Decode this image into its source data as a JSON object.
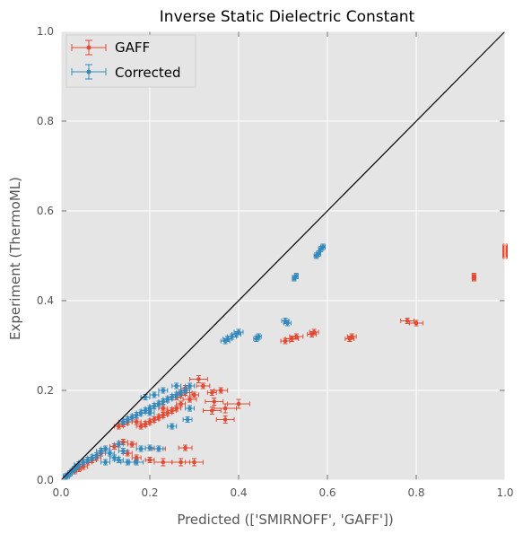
{
  "chart_data": {
    "type": "scatter",
    "title": "Inverse Static Dielectric Constant",
    "xlabel": "Predicted (['SMIRNOFF', 'GAFF'])",
    "ylabel": "Experiment (ThermoML)",
    "xlim": [
      0.0,
      1.0
    ],
    "ylim": [
      0.0,
      1.0
    ],
    "xticks": [
      "0.0",
      "0.2",
      "0.4",
      "0.6",
      "0.8",
      "1.0"
    ],
    "yticks": [
      "0.0",
      "0.2",
      "0.4",
      "0.6",
      "0.8",
      "1.0"
    ],
    "grid": true,
    "legend_position": "top-left",
    "diagonal": {
      "from": [
        0,
        0
      ],
      "to": [
        1,
        1
      ],
      "color": "#000000"
    },
    "series": [
      {
        "name": "GAFF",
        "color": "#E24A33",
        "points": [
          [
            1.0,
            0.52,
            0.005
          ],
          [
            1.0,
            0.51,
            0.005
          ],
          [
            1.0,
            0.5,
            0.005
          ],
          [
            0.93,
            0.455,
            0.004
          ],
          [
            0.93,
            0.45,
            0.004
          ],
          [
            0.78,
            0.355,
            0.015
          ],
          [
            0.8,
            0.35,
            0.015
          ],
          [
            0.655,
            0.32,
            0.01
          ],
          [
            0.65,
            0.315,
            0.01
          ],
          [
            0.57,
            0.33,
            0.01
          ],
          [
            0.565,
            0.325,
            0.01
          ],
          [
            0.53,
            0.32,
            0.015
          ],
          [
            0.52,
            0.315,
            0.015
          ],
          [
            0.505,
            0.31,
            0.01
          ],
          [
            0.37,
            0.135,
            0.02
          ],
          [
            0.37,
            0.16,
            0.025
          ],
          [
            0.4,
            0.17,
            0.025
          ],
          [
            0.34,
            0.155,
            0.02
          ],
          [
            0.345,
            0.175,
            0.02
          ],
          [
            0.34,
            0.195,
            0.01
          ],
          [
            0.36,
            0.2,
            0.015
          ],
          [
            0.32,
            0.21,
            0.015
          ],
          [
            0.31,
            0.225,
            0.02
          ],
          [
            0.29,
            0.18,
            0.015
          ],
          [
            0.28,
            0.195,
            0.015
          ],
          [
            0.27,
            0.17,
            0.01
          ],
          [
            0.26,
            0.16,
            0.01
          ],
          [
            0.25,
            0.155,
            0.01
          ],
          [
            0.24,
            0.15,
            0.01
          ],
          [
            0.23,
            0.145,
            0.01
          ],
          [
            0.22,
            0.14,
            0.01
          ],
          [
            0.21,
            0.135,
            0.01
          ],
          [
            0.2,
            0.13,
            0.01
          ],
          [
            0.19,
            0.125,
            0.01
          ],
          [
            0.18,
            0.12,
            0.01
          ],
          [
            0.17,
            0.13,
            0.01
          ],
          [
            0.16,
            0.14,
            0.01
          ],
          [
            0.15,
            0.13,
            0.01
          ],
          [
            0.14,
            0.125,
            0.01
          ],
          [
            0.13,
            0.12,
            0.01
          ],
          [
            0.22,
            0.17,
            0.01
          ],
          [
            0.24,
            0.18,
            0.01
          ],
          [
            0.26,
            0.185,
            0.01
          ],
          [
            0.28,
            0.205,
            0.01
          ],
          [
            0.3,
            0.19,
            0.01
          ],
          [
            0.23,
            0.16,
            0.01
          ],
          [
            0.27,
            0.19,
            0.01
          ],
          [
            0.28,
            0.072,
            0.015
          ],
          [
            0.22,
            0.07,
            0.015
          ],
          [
            0.3,
            0.04,
            0.02
          ],
          [
            0.27,
            0.04,
            0.02
          ],
          [
            0.23,
            0.04,
            0.02
          ],
          [
            0.2,
            0.045,
            0.01
          ],
          [
            0.17,
            0.05,
            0.01
          ],
          [
            0.16,
            0.08,
            0.01
          ],
          [
            0.14,
            0.085,
            0.01
          ],
          [
            0.15,
            0.06,
            0.01
          ],
          [
            0.12,
            0.075,
            0.01
          ],
          [
            0.1,
            0.07,
            0.01
          ],
          [
            0.09,
            0.06,
            0.01
          ],
          [
            0.08,
            0.05,
            0.01
          ],
          [
            0.07,
            0.045,
            0.01
          ],
          [
            0.06,
            0.04,
            0.01
          ],
          [
            0.05,
            0.03,
            0.01
          ],
          [
            0.04,
            0.025,
            0.005
          ],
          [
            0.03,
            0.02,
            0.005
          ],
          [
            0.02,
            0.015,
            0.005
          ],
          [
            0.015,
            0.01,
            0.005
          ]
        ]
      },
      {
        "name": "Corrected",
        "color": "#348ABD",
        "points": [
          [
            0.59,
            0.52,
            0.005
          ],
          [
            0.585,
            0.515,
            0.005
          ],
          [
            0.58,
            0.505,
            0.005
          ],
          [
            0.575,
            0.5,
            0.005
          ],
          [
            0.53,
            0.455,
            0.004
          ],
          [
            0.525,
            0.45,
            0.004
          ],
          [
            0.505,
            0.355,
            0.008
          ],
          [
            0.51,
            0.35,
            0.008
          ],
          [
            0.445,
            0.32,
            0.006
          ],
          [
            0.44,
            0.315,
            0.006
          ],
          [
            0.4,
            0.33,
            0.01
          ],
          [
            0.395,
            0.325,
            0.01
          ],
          [
            0.385,
            0.32,
            0.01
          ],
          [
            0.375,
            0.315,
            0.01
          ],
          [
            0.37,
            0.31,
            0.01
          ],
          [
            0.29,
            0.21,
            0.01
          ],
          [
            0.28,
            0.2,
            0.01
          ],
          [
            0.27,
            0.195,
            0.01
          ],
          [
            0.26,
            0.19,
            0.01
          ],
          [
            0.25,
            0.185,
            0.01
          ],
          [
            0.24,
            0.18,
            0.01
          ],
          [
            0.23,
            0.175,
            0.01
          ],
          [
            0.22,
            0.17,
            0.01
          ],
          [
            0.21,
            0.165,
            0.01
          ],
          [
            0.2,
            0.16,
            0.01
          ],
          [
            0.19,
            0.155,
            0.01
          ],
          [
            0.18,
            0.15,
            0.01
          ],
          [
            0.17,
            0.145,
            0.01
          ],
          [
            0.16,
            0.14,
            0.01
          ],
          [
            0.15,
            0.135,
            0.01
          ],
          [
            0.14,
            0.13,
            0.01
          ],
          [
            0.19,
            0.185,
            0.01
          ],
          [
            0.21,
            0.19,
            0.01
          ],
          [
            0.23,
            0.2,
            0.01
          ],
          [
            0.26,
            0.21,
            0.01
          ],
          [
            0.285,
            0.135,
            0.01
          ],
          [
            0.29,
            0.16,
            0.01
          ],
          [
            0.25,
            0.12,
            0.01
          ],
          [
            0.2,
            0.15,
            0.01
          ],
          [
            0.22,
            0.07,
            0.01
          ],
          [
            0.2,
            0.072,
            0.01
          ],
          [
            0.18,
            0.07,
            0.01
          ],
          [
            0.17,
            0.04,
            0.015
          ],
          [
            0.15,
            0.04,
            0.015
          ],
          [
            0.13,
            0.045,
            0.01
          ],
          [
            0.12,
            0.05,
            0.01
          ],
          [
            0.11,
            0.06,
            0.01
          ],
          [
            0.1,
            0.07,
            0.01
          ],
          [
            0.09,
            0.065,
            0.01
          ],
          [
            0.08,
            0.055,
            0.01
          ],
          [
            0.07,
            0.05,
            0.01
          ],
          [
            0.06,
            0.045,
            0.01
          ],
          [
            0.05,
            0.04,
            0.01
          ],
          [
            0.04,
            0.035,
            0.01
          ],
          [
            0.035,
            0.03,
            0.005
          ],
          [
            0.03,
            0.025,
            0.005
          ],
          [
            0.025,
            0.02,
            0.005
          ],
          [
            0.02,
            0.015,
            0.005
          ],
          [
            0.015,
            0.01,
            0.005
          ],
          [
            0.01,
            0.008,
            0.005
          ],
          [
            0.13,
            0.08,
            0.01
          ],
          [
            0.14,
            0.065,
            0.01
          ],
          [
            0.1,
            0.04,
            0.01
          ]
        ]
      }
    ]
  }
}
